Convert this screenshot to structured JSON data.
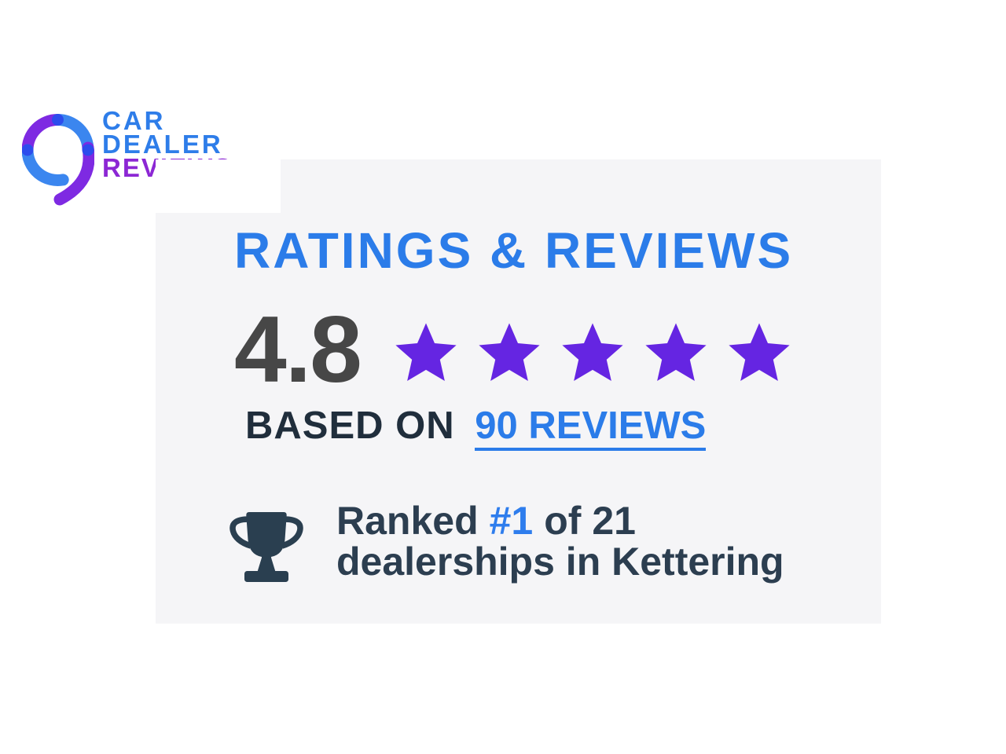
{
  "logo": {
    "name": "Car Dealer Reviews",
    "line1": "CAR",
    "line2": "DEALER",
    "line3": "REVIEWS"
  },
  "ratings_panel": {
    "heading": "RATINGS & REVIEWS",
    "rating_value": "4.8",
    "star_count": 5,
    "based_on_label": "BASED ON",
    "reviews_link": "90 REVIEWS",
    "rank": {
      "prefix": "Ranked",
      "position": "#1",
      "middle": "of 21",
      "line2": "dealerships in Kettering"
    }
  },
  "colors": {
    "brand_blue": "#2e7de9",
    "brand_purple": "#8c27d4",
    "heading_blue": "#2b7ce9",
    "link_blue": "#2b7ce9",
    "rank_number_blue": "#2e7ded",
    "star_purple": "#6525e2",
    "rating_text": "#474747",
    "based_on_text": "#202e3c",
    "rank_text_slate": "#2c3e50",
    "trophy_slate": "#2a3f50",
    "panel_background": "#f5f5f7",
    "ring_blue": "#3b86ef",
    "ring_purple": "#7e2ae2",
    "ring_dot_blue": "#2c4ced"
  }
}
